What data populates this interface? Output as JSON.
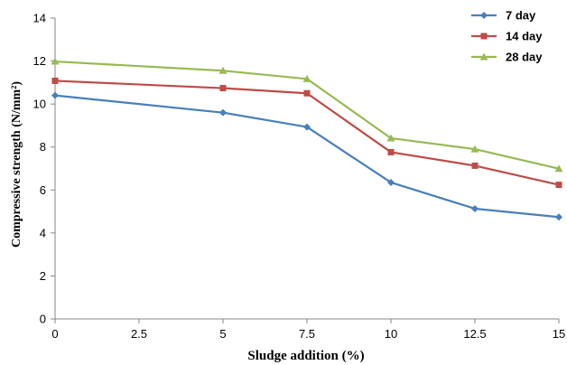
{
  "chart_data": {
    "type": "line",
    "x": [
      0,
      2.5,
      5,
      7.5,
      10,
      12.5,
      15
    ],
    "x_ticks": [
      "0",
      "2.5",
      "5",
      "7.5",
      "10",
      "12.5",
      "15"
    ],
    "xlabel": "Sludge addition  (%)",
    "ylabel": "Compressive strength (N/mm²)",
    "ylim": [
      0,
      14
    ],
    "y_ticks": [
      "0",
      "2",
      "4",
      "6",
      "8",
      "10",
      "12",
      "14"
    ],
    "grid": false,
    "legend_position": "top-right",
    "series": [
      {
        "name": "7 day",
        "color": "#4a7ebb",
        "marker": "diamond",
        "x": [
          0,
          5,
          7.5,
          10,
          12.5,
          15
        ],
        "values": [
          10.4,
          9.6,
          8.93,
          6.35,
          5.13,
          4.74
        ]
      },
      {
        "name": "14 day",
        "color": "#be4b48",
        "marker": "square",
        "x": [
          0,
          5,
          7.5,
          10,
          12.5,
          15
        ],
        "values": [
          11.08,
          10.74,
          10.5,
          7.76,
          7.13,
          6.24
        ]
      },
      {
        "name": "28 day",
        "color": "#98b954",
        "marker": "triangle",
        "x": [
          0,
          5,
          7.5,
          10,
          12.5,
          15
        ],
        "values": [
          11.98,
          11.55,
          11.17,
          8.41,
          7.9,
          6.99
        ]
      }
    ]
  }
}
